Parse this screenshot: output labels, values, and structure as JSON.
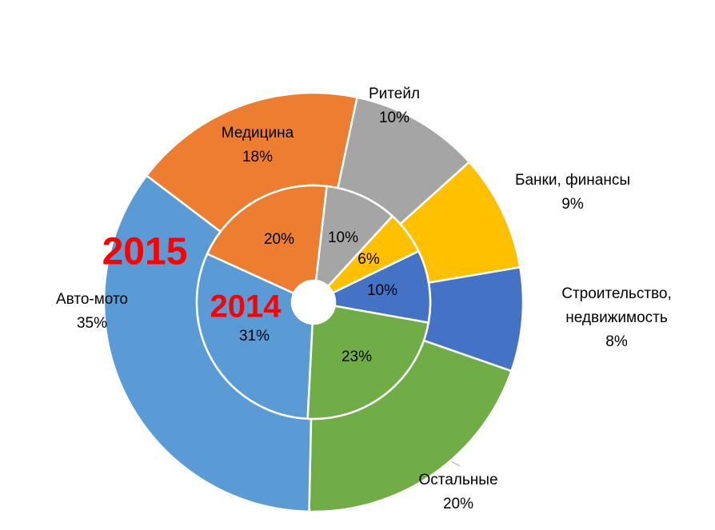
{
  "chart_data": {
    "type": "doughnut",
    "categories": [
      "Ритейл",
      "Банки, финансы",
      "Строительство, недвижимость",
      "Остальные",
      "Авто-мото",
      "Медицина"
    ],
    "colors": [
      "#a5a5a5",
      "#ffc000",
      "#4472c4",
      "#70ad47",
      "#5b9bd5",
      "#ed7d31"
    ],
    "series": [
      {
        "name": "2015",
        "color": "#ff0000",
        "values": [
          10,
          9,
          8,
          20,
          35,
          18
        ],
        "value_labels": [
          "10%",
          "9%",
          "8%",
          "20%",
          "35%",
          "18%"
        ]
      },
      {
        "name": "2014",
        "color": "#ff0000",
        "values": [
          10,
          6,
          10,
          23,
          31,
          20
        ],
        "value_labels": [
          "10%",
          "6%",
          "10%",
          "23%",
          "31%",
          "20%"
        ]
      }
    ]
  }
}
